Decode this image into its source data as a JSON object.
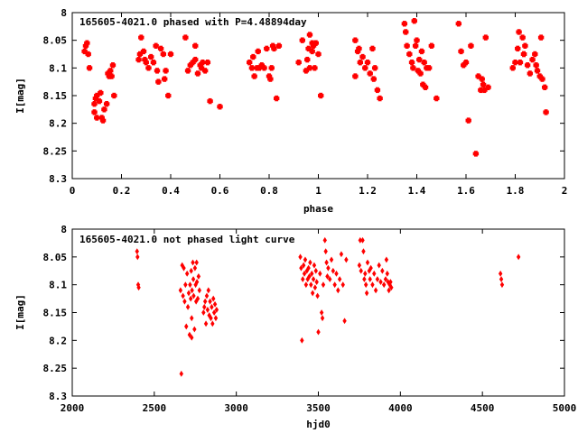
{
  "chart_data": [
    {
      "type": "scatter",
      "title": "165605-4021.0 phased with P=4.48894day",
      "xlabel": "phase",
      "ylabel": "I[mag]",
      "xlim": [
        0,
        2
      ],
      "ylim": [
        8.3,
        8.0
      ],
      "y_inverted": true,
      "xticks": [
        "0",
        "0.2",
        "0.4",
        "0.6",
        "0.8",
        "1",
        "1.2",
        "1.4",
        "1.6",
        "1.8",
        "2"
      ],
      "yticks": [
        "8",
        "8.05",
        "8.1",
        "8.15",
        "8.2",
        "8.25",
        "8.3"
      ],
      "marker": "star",
      "color": "#ff0000",
      "points": [
        [
          0.05,
          8.07
        ],
        [
          0.055,
          8.06
        ],
        [
          0.06,
          8.055
        ],
        [
          0.065,
          8.075
        ],
        [
          0.07,
          8.1
        ],
        [
          0.09,
          8.165
        ],
        [
          0.09,
          8.18
        ],
        [
          0.095,
          8.155
        ],
        [
          0.1,
          8.15
        ],
        [
          0.1,
          8.19
        ],
        [
          0.11,
          8.16
        ],
        [
          0.115,
          8.145
        ],
        [
          0.12,
          8.19
        ],
        [
          0.125,
          8.195
        ],
        [
          0.13,
          8.175
        ],
        [
          0.14,
          8.165
        ],
        [
          0.145,
          8.11
        ],
        [
          0.15,
          8.115
        ],
        [
          0.155,
          8.105
        ],
        [
          0.16,
          8.115
        ],
        [
          0.165,
          8.095
        ],
        [
          0.17,
          8.15
        ],
        [
          0.27,
          8.085
        ],
        [
          0.275,
          8.075
        ],
        [
          0.28,
          8.045
        ],
        [
          0.29,
          8.07
        ],
        [
          0.295,
          8.085
        ],
        [
          0.3,
          8.09
        ],
        [
          0.31,
          8.1
        ],
        [
          0.32,
          8.08
        ],
        [
          0.33,
          8.09
        ],
        [
          0.34,
          8.06
        ],
        [
          0.345,
          8.105
        ],
        [
          0.35,
          8.125
        ],
        [
          0.36,
          8.065
        ],
        [
          0.37,
          8.075
        ],
        [
          0.375,
          8.12
        ],
        [
          0.38,
          8.105
        ],
        [
          0.39,
          8.15
        ],
        [
          0.4,
          8.075
        ],
        [
          0.46,
          8.045
        ],
        [
          0.47,
          8.105
        ],
        [
          0.48,
          8.095
        ],
        [
          0.49,
          8.09
        ],
        [
          0.5,
          8.085
        ],
        [
          0.5,
          8.06
        ],
        [
          0.51,
          8.11
        ],
        [
          0.52,
          8.095
        ],
        [
          0.525,
          8.1
        ],
        [
          0.53,
          8.09
        ],
        [
          0.54,
          8.105
        ],
        [
          0.55,
          8.09
        ],
        [
          0.56,
          8.16
        ],
        [
          0.6,
          8.17
        ],
        [
          0.72,
          8.09
        ],
        [
          0.73,
          8.1
        ],
        [
          0.735,
          8.08
        ],
        [
          0.74,
          8.115
        ],
        [
          0.75,
          8.1
        ],
        [
          0.755,
          8.07
        ],
        [
          0.76,
          8.1
        ],
        [
          0.77,
          8.095
        ],
        [
          0.78,
          8.1
        ],
        [
          0.79,
          8.065
        ],
        [
          0.8,
          8.115
        ],
        [
          0.805,
          8.12
        ],
        [
          0.81,
          8.1
        ],
        [
          0.815,
          8.06
        ],
        [
          0.82,
          8.065
        ],
        [
          0.83,
          8.155
        ],
        [
          0.84,
          8.06
        ],
        [
          0.92,
          8.09
        ],
        [
          0.935,
          8.05
        ],
        [
          0.95,
          8.105
        ],
        [
          0.955,
          8.085
        ],
        [
          0.96,
          8.065
        ],
        [
          0.965,
          8.1
        ],
        [
          0.975,
          8.07
        ],
        [
          0.98,
          8.06
        ],
        [
          0.985,
          8.1
        ],
        [
          0.99,
          8.055
        ],
        [
          1.0,
          8.075
        ],
        [
          1.01,
          8.15
        ],
        [
          0.965,
          8.04
        ],
        [
          0.975,
          8.055
        ],
        [
          1.15,
          8.05
        ],
        [
          1.16,
          8.07
        ],
        [
          1.17,
          8.09
        ],
        [
          1.18,
          8.08
        ],
        [
          1.19,
          8.1
        ],
        [
          1.2,
          8.09
        ],
        [
          1.21,
          8.11
        ],
        [
          1.22,
          8.065
        ],
        [
          1.225,
          8.12
        ],
        [
          1.23,
          8.1
        ],
        [
          1.24,
          8.14
        ],
        [
          1.25,
          8.155
        ],
        [
          1.15,
          8.115
        ],
        [
          1.165,
          8.065
        ],
        [
          1.35,
          8.02
        ],
        [
          1.355,
          8.035
        ],
        [
          1.36,
          8.06
        ],
        [
          1.37,
          8.075
        ],
        [
          1.38,
          8.09
        ],
        [
          1.385,
          8.1
        ],
        [
          1.39,
          8.015
        ],
        [
          1.395,
          8.06
        ],
        [
          1.4,
          8.05
        ],
        [
          1.405,
          8.105
        ],
        [
          1.41,
          8.085
        ],
        [
          1.415,
          8.11
        ],
        [
          1.42,
          8.07
        ],
        [
          1.425,
          8.13
        ],
        [
          1.43,
          8.09
        ],
        [
          1.435,
          8.135
        ],
        [
          1.44,
          8.1
        ],
        [
          1.45,
          8.1
        ],
        [
          1.46,
          8.06
        ],
        [
          1.48,
          8.155
        ],
        [
          1.57,
          8.02
        ],
        [
          1.58,
          8.07
        ],
        [
          1.59,
          8.095
        ],
        [
          1.6,
          8.09
        ],
        [
          1.61,
          8.195
        ],
        [
          1.62,
          8.06
        ],
        [
          1.64,
          8.255
        ],
        [
          1.65,
          8.115
        ],
        [
          1.66,
          8.14
        ],
        [
          1.665,
          8.12
        ],
        [
          1.67,
          8.13
        ],
        [
          1.675,
          8.14
        ],
        [
          1.68,
          8.045
        ],
        [
          1.69,
          8.135
        ],
        [
          1.79,
          8.1
        ],
        [
          1.8,
          8.09
        ],
        [
          1.81,
          8.065
        ],
        [
          1.815,
          8.035
        ],
        [
          1.82,
          8.09
        ],
        [
          1.83,
          8.045
        ],
        [
          1.835,
          8.075
        ],
        [
          1.84,
          8.06
        ],
        [
          1.85,
          8.095
        ],
        [
          1.86,
          8.11
        ],
        [
          1.87,
          8.085
        ],
        [
          1.88,
          8.075
        ],
        [
          1.885,
          8.095
        ],
        [
          1.89,
          8.105
        ],
        [
          1.9,
          8.115
        ],
        [
          1.905,
          8.045
        ],
        [
          1.91,
          8.12
        ],
        [
          1.92,
          8.135
        ],
        [
          1.925,
          8.18
        ],
        [
          1.835,
          8.075
        ]
      ]
    },
    {
      "type": "scatter",
      "title": "165605-4021.0 not phased light curve",
      "xlabel": "hjd0",
      "ylabel": "I[mag]",
      "xlim": [
        2000,
        5000
      ],
      "ylim": [
        8.3,
        8.0
      ],
      "y_inverted": true,
      "xticks": [
        "2000",
        "2500",
        "3000",
        "3500",
        "4000",
        "4500",
        "5000"
      ],
      "yticks": [
        "8",
        "8.05",
        "8.1",
        "8.15",
        "8.2",
        "8.25",
        "8.3"
      ],
      "marker": "diamond",
      "color": "#ff0000",
      "points": [
        [
          2395,
          8.04
        ],
        [
          2398,
          8.05
        ],
        [
          2402,
          8.1
        ],
        [
          2405,
          8.105
        ],
        [
          2660,
          8.11
        ],
        [
          2665,
          8.26
        ],
        [
          2670,
          8.065
        ],
        [
          2675,
          8.12
        ],
        [
          2680,
          8.07
        ],
        [
          2685,
          8.13
        ],
        [
          2690,
          8.1
        ],
        [
          2695,
          8.175
        ],
        [
          2700,
          8.08
        ],
        [
          2705,
          8.14
        ],
        [
          2710,
          8.115
        ],
        [
          2715,
          8.19
        ],
        [
          2718,
          8.1
        ],
        [
          2722,
          8.125
        ],
        [
          2725,
          8.075
        ],
        [
          2728,
          8.16
        ],
        [
          2730,
          8.11
        ],
        [
          2735,
          8.06
        ],
        [
          2738,
          8.09
        ],
        [
          2740,
          8.12
        ],
        [
          2745,
          8.18
        ],
        [
          2748,
          8.07
        ],
        [
          2752,
          8.1
        ],
        [
          2755,
          8.13
        ],
        [
          2758,
          8.06
        ],
        [
          2760,
          8.095
        ],
        [
          2765,
          8.125
        ],
        [
          2770,
          8.085
        ],
        [
          2775,
          8.11
        ],
        [
          2800,
          8.15
        ],
        [
          2805,
          8.14
        ],
        [
          2810,
          8.13
        ],
        [
          2815,
          8.17
        ],
        [
          2820,
          8.12
        ],
        [
          2825,
          8.145
        ],
        [
          2830,
          8.11
        ],
        [
          2835,
          8.155
        ],
        [
          2840,
          8.13
        ],
        [
          2845,
          8.16
        ],
        [
          2850,
          8.14
        ],
        [
          2855,
          8.17
        ],
        [
          2860,
          8.125
        ],
        [
          2865,
          8.15
        ],
        [
          2870,
          8.135
        ],
        [
          2875,
          8.16
        ],
        [
          2880,
          8.145
        ],
        [
          2728,
          8.195
        ],
        [
          3390,
          8.05
        ],
        [
          3395,
          8.07
        ],
        [
          3400,
          8.2
        ],
        [
          3405,
          8.09
        ],
        [
          3410,
          8.065
        ],
        [
          3415,
          8.08
        ],
        [
          3420,
          8.055
        ],
        [
          3425,
          8.1
        ],
        [
          3430,
          8.075
        ],
        [
          3435,
          8.09
        ],
        [
          3440,
          8.07
        ],
        [
          3445,
          8.085
        ],
        [
          3450,
          8.06
        ],
        [
          3455,
          8.1
        ],
        [
          3460,
          8.08
        ],
        [
          3465,
          8.115
        ],
        [
          3470,
          8.09
        ],
        [
          3475,
          8.065
        ],
        [
          3480,
          8.105
        ],
        [
          3485,
          8.075
        ],
        [
          3490,
          8.095
        ],
        [
          3495,
          8.12
        ],
        [
          3500,
          8.185
        ],
        [
          3510,
          8.08
        ],
        [
          3520,
          8.15
        ],
        [
          3525,
          8.16
        ],
        [
          3530,
          8.1
        ],
        [
          3540,
          8.02
        ],
        [
          3545,
          8.04
        ],
        [
          3550,
          8.06
        ],
        [
          3555,
          8.085
        ],
        [
          3560,
          8.07
        ],
        [
          3570,
          8.09
        ],
        [
          3580,
          8.055
        ],
        [
          3590,
          8.075
        ],
        [
          3600,
          8.1
        ],
        [
          3610,
          8.08
        ],
        [
          3620,
          8.11
        ],
        [
          3630,
          8.09
        ],
        [
          3640,
          8.045
        ],
        [
          3650,
          8.1
        ],
        [
          3660,
          8.165
        ],
        [
          3670,
          8.055
        ],
        [
          3750,
          8.065
        ],
        [
          3755,
          8.02
        ],
        [
          3760,
          8.075
        ],
        [
          3770,
          8.02
        ],
        [
          3775,
          8.04
        ],
        [
          3780,
          8.09
        ],
        [
          3785,
          8.08
        ],
        [
          3790,
          8.1
        ],
        [
          3795,
          8.115
        ],
        [
          3800,
          8.06
        ],
        [
          3810,
          8.075
        ],
        [
          3815,
          8.09
        ],
        [
          3820,
          8.07
        ],
        [
          3830,
          8.1
        ],
        [
          3840,
          8.08
        ],
        [
          3850,
          8.11
        ],
        [
          3860,
          8.09
        ],
        [
          3870,
          8.065
        ],
        [
          3880,
          8.095
        ],
        [
          3890,
          8.075
        ],
        [
          3900,
          8.1
        ],
        [
          3910,
          8.09
        ],
        [
          3915,
          8.055
        ],
        [
          3920,
          8.08
        ],
        [
          3925,
          8.095
        ],
        [
          3930,
          8.11
        ],
        [
          3935,
          8.1
        ],
        [
          3940,
          8.095
        ],
        [
          3945,
          8.105
        ],
        [
          4610,
          8.08
        ],
        [
          4615,
          8.09
        ],
        [
          4620,
          8.1
        ],
        [
          4720,
          8.05
        ]
      ]
    }
  ]
}
